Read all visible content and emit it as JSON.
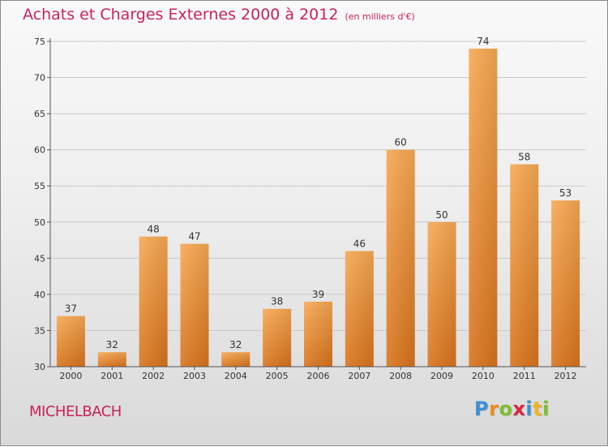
{
  "header": {
    "title": "Achats et Charges Externes 2000 à 2012",
    "unit": "(en milliers d'€)"
  },
  "footer": {
    "commune": "MICHELBACH",
    "logo_letters": [
      {
        "ch": "P",
        "color": "#3a8fd6"
      },
      {
        "ch": "r",
        "color": "#f08a1c"
      },
      {
        "ch": "o",
        "color": "#7bbf2a"
      },
      {
        "ch": "x",
        "color": "#d9263e"
      },
      {
        "ch": "i",
        "color": "#3a8fd6"
      },
      {
        "ch": "t",
        "color": "#f0b41c"
      },
      {
        "ch": "i",
        "color": "#7bbf2a"
      }
    ]
  },
  "colors": {
    "title": "#c8235a",
    "bar_top": "#f7a852",
    "bar_bottom": "#d8731c",
    "grid": "#c8c8c8",
    "axis": "#555555"
  },
  "chart_data": {
    "type": "bar",
    "title": "Achats et Charges Externes 2000 à 2012",
    "xlabel": "",
    "ylabel": "",
    "ylim": [
      30,
      75
    ],
    "yticks": [
      30,
      35,
      40,
      45,
      50,
      55,
      60,
      65,
      70,
      75
    ],
    "grid": true,
    "categories": [
      "2000",
      "2001",
      "2002",
      "2003",
      "2004",
      "2005",
      "2006",
      "2007",
      "2008",
      "2009",
      "2010",
      "2011",
      "2012"
    ],
    "values": [
      37,
      32,
      48,
      47,
      32,
      38,
      39,
      46,
      60,
      50,
      74,
      58,
      53
    ]
  }
}
